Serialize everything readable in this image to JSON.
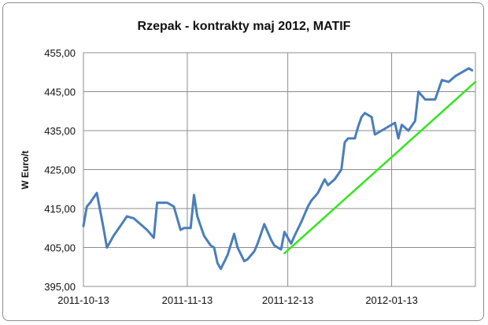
{
  "chart_data": {
    "type": "line",
    "title": "Rzepak - kontrakty maj 2012, MATIF",
    "xlabel": "",
    "ylabel": "W Euro/t",
    "ylim": [
      395,
      455
    ],
    "yticks": [
      "395,00",
      "405,00",
      "415,00",
      "425,00",
      "435,00",
      "445,00",
      "455,00"
    ],
    "yticks_values": [
      395,
      405,
      415,
      425,
      435,
      445,
      455
    ],
    "xticks": [
      "2011-10-13",
      "2011-11-13",
      "2011-12-13",
      "2012-01-13"
    ],
    "xticks_values": [
      "2011-10-13",
      "2011-11-13",
      "2011-12-13",
      "2012-01-13"
    ],
    "xlim": [
      "2011-10-13",
      "2012-02-07"
    ],
    "grid": "horizontal and vertical at ticks",
    "series": [
      {
        "color": "#4a7ebb",
        "x": [
          "2011-10-13",
          "2011-10-14",
          "2011-10-15",
          "2011-10-17",
          "2011-10-19",
          "2011-10-20",
          "2011-10-21",
          "2011-10-22",
          "2011-10-24",
          "2011-10-26",
          "2011-10-28",
          "2011-10-30",
          "2011-11-01",
          "2011-11-03",
          "2011-11-04",
          "2011-11-05",
          "2011-11-07",
          "2011-11-09",
          "2011-11-11",
          "2011-11-12",
          "2011-11-14",
          "2011-11-15",
          "2011-11-16",
          "2011-11-18",
          "2011-11-20",
          "2011-11-21",
          "2011-11-22",
          "2011-11-23",
          "2011-11-25",
          "2011-11-27",
          "2011-11-28",
          "2011-11-30",
          "2011-12-01",
          "2011-12-03",
          "2011-12-04",
          "2011-12-06",
          "2011-12-08",
          "2011-12-09",
          "2011-12-11",
          "2011-12-12",
          "2011-12-13",
          "2011-12-14",
          "2011-12-15",
          "2011-12-17",
          "2011-12-19",
          "2011-12-20",
          "2011-12-22",
          "2011-12-24",
          "2011-12-25",
          "2011-12-27",
          "2011-12-29",
          "2011-12-30",
          "2011-12-31",
          "2012-01-02",
          "2012-01-03",
          "2012-01-04",
          "2012-01-05",
          "2012-01-07",
          "2012-01-08",
          "2012-01-10",
          "2012-01-11",
          "2012-01-12",
          "2012-01-14",
          "2012-01-15",
          "2012-01-16",
          "2012-01-18",
          "2012-01-20",
          "2012-01-21",
          "2012-01-23",
          "2012-01-25",
          "2012-01-26",
          "2012-01-28",
          "2012-01-30",
          "2012-02-01",
          "2012-02-03",
          "2012-02-05",
          "2012-02-06"
        ],
        "values": [
          410.5,
          415.5,
          416.5,
          419.0,
          410.0,
          405.0,
          406.5,
          408.0,
          410.5,
          413.0,
          412.5,
          411.0,
          409.5,
          407.5,
          416.5,
          416.5,
          416.5,
          415.5,
          409.5,
          410.0,
          410.0,
          418.5,
          413.0,
          408.0,
          405.5,
          405.0,
          401.0,
          399.5,
          403.0,
          408.5,
          405.0,
          401.5,
          402.0,
          404.0,
          406.0,
          411.0,
          407.0,
          405.5,
          404.5,
          409.0,
          407.5,
          406.0,
          408.0,
          411.5,
          415.5,
          417.0,
          419.0,
          422.5,
          421.0,
          422.5,
          425.0,
          432.0,
          433.0,
          433.0,
          436.0,
          438.5,
          439.5,
          438.5,
          434.0,
          435.0,
          435.5,
          436.0,
          437.0,
          433.0,
          436.5,
          435.0,
          437.5,
          445.0,
          443.0,
          443.0,
          443.0,
          448.0,
          447.5,
          449.0,
          450.0,
          451.0,
          450.5
        ]
      },
      {
        "color": "#33e61f",
        "x": [
          "2011-12-12",
          "2012-02-07"
        ],
        "values": [
          403.5,
          447.5
        ]
      }
    ]
  }
}
